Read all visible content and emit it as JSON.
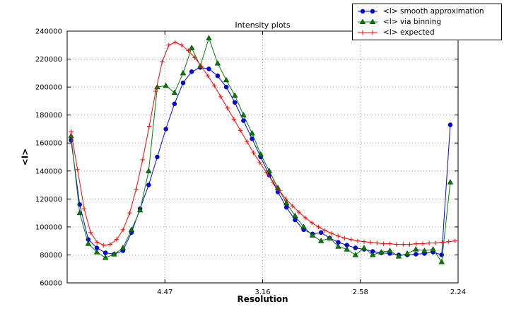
{
  "chart_data": {
    "type": "line",
    "title": "Intensity plots",
    "xlabel": "Resolution",
    "ylabel": "<I>",
    "grid": true,
    "legend_position": "upper right",
    "xlim": [
      0.0,
      0.2
    ],
    "ylim": [
      60000,
      240000
    ],
    "y_ticks": [
      60000,
      80000,
      100000,
      120000,
      140000,
      160000,
      180000,
      200000,
      220000,
      240000
    ],
    "x_ticks": [
      {
        "x": 0.05,
        "label": "4.47"
      },
      {
        "x": 0.1,
        "label": "3.16"
      },
      {
        "x": 0.15,
        "label": "2.58"
      },
      {
        "x": 0.2,
        "label": "2.24"
      }
    ],
    "series": [
      {
        "id": "smooth",
        "name": "<I> smooth approximation",
        "color": "#0000ff",
        "marker": "circle",
        "x": [
          0.002,
          0.0064,
          0.0108,
          0.0152,
          0.0196,
          0.024,
          0.0285,
          0.0329,
          0.0373,
          0.0417,
          0.0461,
          0.0505,
          0.0549,
          0.0593,
          0.0637,
          0.0681,
          0.0725,
          0.077,
          0.0814,
          0.0858,
          0.0902,
          0.0946,
          0.099,
          0.1034,
          0.1078,
          0.1122,
          0.1166,
          0.121,
          0.1255,
          0.1299,
          0.1343,
          0.1387,
          0.1431,
          0.1475,
          0.1519,
          0.1563,
          0.1607,
          0.1651,
          0.1696,
          0.174,
          0.1784,
          0.1828,
          0.1872,
          0.1916,
          0.196
        ],
        "y": [
          162000,
          116000,
          91000,
          85000,
          81500,
          80500,
          83000,
          96000,
          113000,
          130000,
          150000,
          170000,
          188000,
          203000,
          211000,
          214000,
          213000,
          208000,
          200000,
          189000,
          176000,
          163000,
          150000,
          137000,
          125000,
          114000,
          105000,
          98000,
          95000,
          96000,
          92000,
          89000,
          87000,
          85000,
          84000,
          82500,
          81500,
          81000,
          80000,
          80000,
          80500,
          81000,
          82000,
          80000,
          173000
        ]
      },
      {
        "id": "binning",
        "name": "<I> via binning",
        "color": "#008000",
        "marker": "triangle",
        "x": [
          0.002,
          0.0064,
          0.0108,
          0.0152,
          0.0196,
          0.024,
          0.0285,
          0.0329,
          0.0373,
          0.0417,
          0.0461,
          0.0505,
          0.0549,
          0.0593,
          0.0637,
          0.0681,
          0.0725,
          0.077,
          0.0814,
          0.0858,
          0.0902,
          0.0946,
          0.099,
          0.1034,
          0.1078,
          0.1122,
          0.1166,
          0.121,
          0.1255,
          0.1299,
          0.1343,
          0.1387,
          0.1431,
          0.1475,
          0.1519,
          0.1563,
          0.1607,
          0.1651,
          0.1696,
          0.174,
          0.1784,
          0.1828,
          0.1872,
          0.1916,
          0.196
        ],
        "y": [
          165000,
          110000,
          88000,
          82000,
          78000,
          80500,
          85000,
          98000,
          112000,
          140000,
          200000,
          201000,
          196000,
          210000,
          228000,
          215000,
          235000,
          217000,
          205000,
          194000,
          180000,
          167000,
          152000,
          140000,
          128000,
          117000,
          108000,
          100000,
          94000,
          90000,
          92000,
          86000,
          84000,
          80000,
          85000,
          80000,
          82000,
          83000,
          79000,
          81000,
          84000,
          83000,
          84000,
          75000,
          132000
        ]
      },
      {
        "id": "expected",
        "name": "<I> expected",
        "color": "#ff0000",
        "marker": "plus",
        "x": [
          0.002,
          0.0053,
          0.0087,
          0.012,
          0.0153,
          0.0187,
          0.022,
          0.0253,
          0.0286,
          0.032,
          0.0353,
          0.0386,
          0.042,
          0.0453,
          0.0486,
          0.052,
          0.0553,
          0.0586,
          0.062,
          0.0653,
          0.0686,
          0.072,
          0.0753,
          0.0786,
          0.082,
          0.0853,
          0.0886,
          0.092,
          0.0953,
          0.0986,
          0.1019,
          0.1053,
          0.1086,
          0.1119,
          0.1153,
          0.1186,
          0.1219,
          0.1252,
          0.1286,
          0.1319,
          0.1352,
          0.1386,
          0.1419,
          0.1452,
          0.1486,
          0.1519,
          0.1552,
          0.1585,
          0.1619,
          0.1652,
          0.1685,
          0.1719,
          0.1752,
          0.1785,
          0.1819,
          0.1852,
          0.1885,
          0.1918,
          0.1952,
          0.1985
        ],
        "y": [
          168000,
          141000,
          113000,
          96000,
          89000,
          87000,
          87500,
          91000,
          98000,
          110000,
          127000,
          148000,
          172000,
          197000,
          218000,
          230000,
          232000,
          230000,
          226000,
          221000,
          215000,
          208000,
          201000,
          193000,
          185000,
          177000,
          169000,
          161000,
          153000,
          146000,
          139000,
          132000,
          126000,
          120000,
          115000,
          110500,
          106500,
          103000,
          100000,
          97500,
          95500,
          93500,
          92000,
          91000,
          90000,
          89500,
          89000,
          88500,
          88000,
          88000,
          87500,
          87500,
          87500,
          88000,
          88000,
          88500,
          88500,
          89000,
          89500,
          90000
        ]
      }
    ]
  }
}
